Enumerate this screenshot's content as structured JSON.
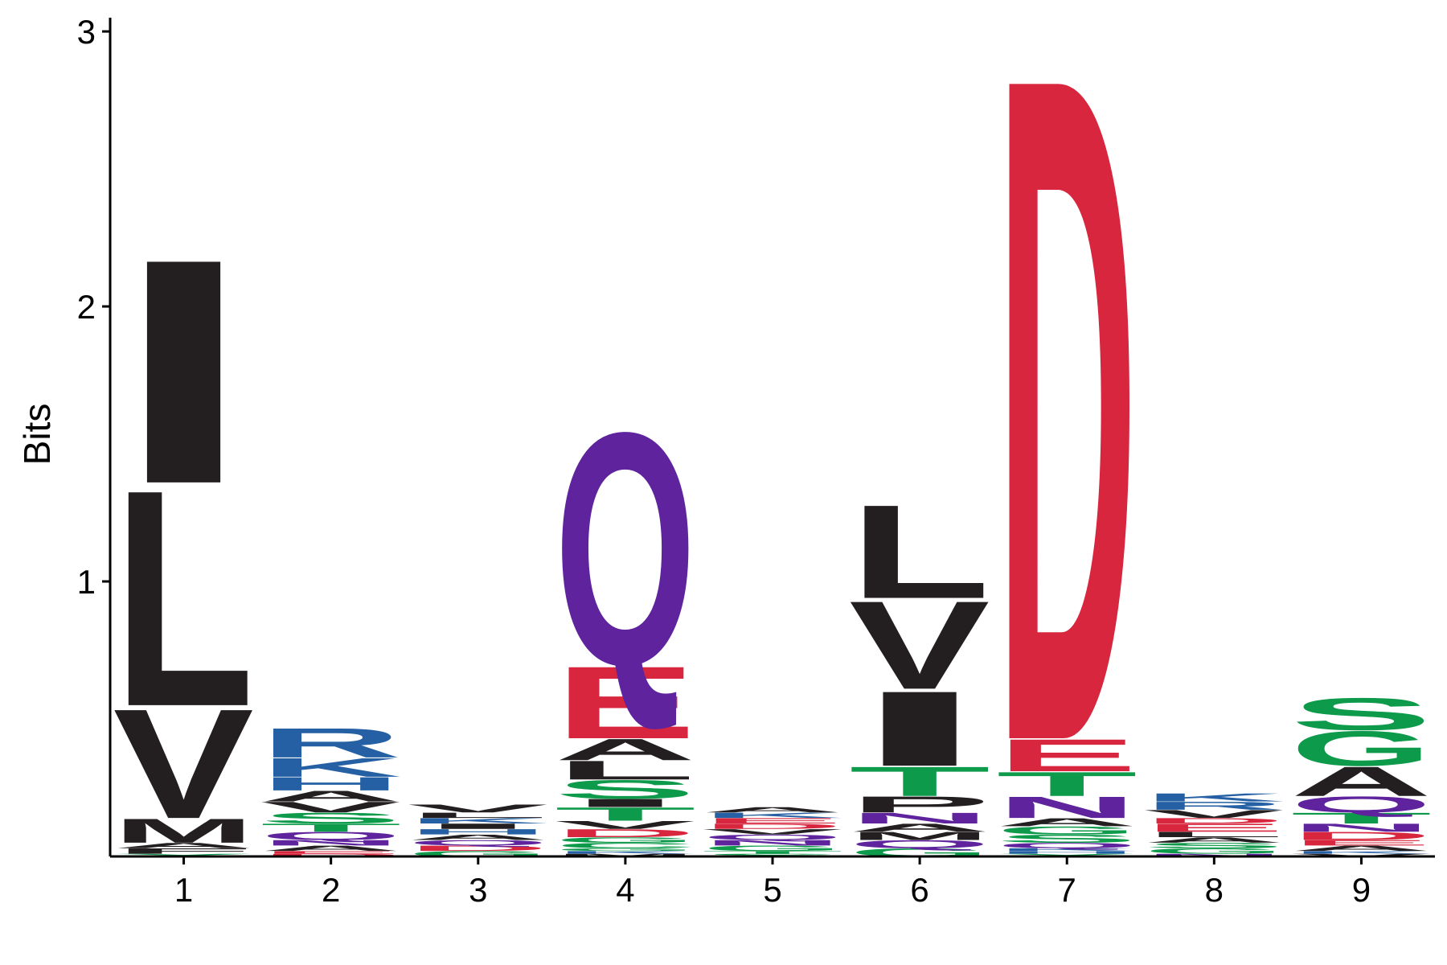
{
  "chart_data": {
    "type": "sequence-logo",
    "ylabel": "Bits",
    "xlabel": "",
    "ylim": [
      0,
      3.05
    ],
    "y_ticks": [
      1,
      2,
      3
    ],
    "positions": [
      "1",
      "2",
      "3",
      "4",
      "5",
      "6",
      "7",
      "8",
      "9"
    ],
    "colors": {
      "hydrophobic": "#231F20",
      "acidic": "#D7263D",
      "basic": "#2660A4",
      "neutral": "#5E239D",
      "polar": "#0D9A4A"
    },
    "stacks": [
      [
        {
          "letter": "Y",
          "bits": 0.01,
          "color": "#0D9A4A"
        },
        {
          "letter": "F",
          "bits": 0.02,
          "color": "#231F20"
        },
        {
          "letter": "A",
          "bits": 0.02,
          "color": "#231F20"
        },
        {
          "letter": "M",
          "bits": 0.09,
          "color": "#231F20"
        },
        {
          "letter": "V",
          "bits": 0.41,
          "color": "#231F20"
        },
        {
          "letter": "L",
          "bits": 0.81,
          "color": "#231F20"
        },
        {
          "letter": "I",
          "bits": 0.84,
          "color": "#231F20"
        }
      ],
      [
        {
          "letter": "D",
          "bits": 0.01,
          "color": "#D7263D"
        },
        {
          "letter": "E",
          "bits": 0.01,
          "color": "#D7263D"
        },
        {
          "letter": "A",
          "bits": 0.02,
          "color": "#231F20"
        },
        {
          "letter": "N",
          "bits": 0.02,
          "color": "#5E239D"
        },
        {
          "letter": "Q",
          "bits": 0.03,
          "color": "#5E239D"
        },
        {
          "letter": "T",
          "bits": 0.03,
          "color": "#0D9A4A"
        },
        {
          "letter": "S",
          "bits": 0.04,
          "color": "#0D9A4A"
        },
        {
          "letter": "V",
          "bits": 0.04,
          "color": "#231F20"
        },
        {
          "letter": "A",
          "bits": 0.04,
          "color": "#231F20"
        },
        {
          "letter": "H",
          "bits": 0.05,
          "color": "#2660A4"
        },
        {
          "letter": "K",
          "bits": 0.07,
          "color": "#2660A4"
        },
        {
          "letter": "R",
          "bits": 0.11,
          "color": "#2660A4"
        }
      ],
      [
        {
          "letter": "G",
          "bits": 0.02,
          "color": "#0D9A4A"
        },
        {
          "letter": "D",
          "bits": 0.02,
          "color": "#D7263D"
        },
        {
          "letter": "Q",
          "bits": 0.02,
          "color": "#5E239D"
        },
        {
          "letter": "A",
          "bits": 0.02,
          "color": "#231F20"
        },
        {
          "letter": "H",
          "bits": 0.02,
          "color": "#2660A4"
        },
        {
          "letter": "I",
          "bits": 0.02,
          "color": "#231F20"
        },
        {
          "letter": "K",
          "bits": 0.02,
          "color": "#2660A4"
        },
        {
          "letter": "L",
          "bits": 0.02,
          "color": "#231F20"
        },
        {
          "letter": "V",
          "bits": 0.03,
          "color": "#231F20"
        }
      ],
      [
        {
          "letter": "M",
          "bits": 0.01,
          "color": "#231F20"
        },
        {
          "letter": "K",
          "bits": 0.01,
          "color": "#2660A4"
        },
        {
          "letter": "G",
          "bits": 0.01,
          "color": "#0D9A4A"
        },
        {
          "letter": "C",
          "bits": 0.02,
          "color": "#0D9A4A"
        },
        {
          "letter": "G",
          "bits": 0.02,
          "color": "#0D9A4A"
        },
        {
          "letter": "D",
          "bits": 0.03,
          "color": "#D7263D"
        },
        {
          "letter": "V",
          "bits": 0.03,
          "color": "#231F20"
        },
        {
          "letter": "T",
          "bits": 0.05,
          "color": "#0D9A4A"
        },
        {
          "letter": "I",
          "bits": 0.03,
          "color": "#231F20"
        },
        {
          "letter": "S",
          "bits": 0.07,
          "color": "#0D9A4A"
        },
        {
          "letter": "L",
          "bits": 0.07,
          "color": "#231F20"
        },
        {
          "letter": "A",
          "bits": 0.08,
          "color": "#231F20"
        },
        {
          "letter": "E",
          "bits": 0.27,
          "color": "#D7263D"
        },
        {
          "letter": "Q",
          "bits": 0.87,
          "color": "#5E239D"
        }
      ],
      [
        {
          "letter": "S",
          "bits": 0.01,
          "color": "#0D9A4A"
        },
        {
          "letter": "T",
          "bits": 0.01,
          "color": "#0D9A4A"
        },
        {
          "letter": "G",
          "bits": 0.02,
          "color": "#0D9A4A"
        },
        {
          "letter": "N",
          "bits": 0.02,
          "color": "#5E239D"
        },
        {
          "letter": "Q",
          "bits": 0.02,
          "color": "#5E239D"
        },
        {
          "letter": "V",
          "bits": 0.02,
          "color": "#231F20"
        },
        {
          "letter": "D",
          "bits": 0.02,
          "color": "#D7263D"
        },
        {
          "letter": "E",
          "bits": 0.02,
          "color": "#D7263D"
        },
        {
          "letter": "K",
          "bits": 0.02,
          "color": "#2660A4"
        },
        {
          "letter": "A",
          "bits": 0.02,
          "color": "#231F20"
        }
      ],
      [
        {
          "letter": "G",
          "bits": 0.03,
          "color": "#0D9A4A"
        },
        {
          "letter": "Q",
          "bits": 0.03,
          "color": "#5E239D"
        },
        {
          "letter": "M",
          "bits": 0.03,
          "color": "#231F20"
        },
        {
          "letter": "A",
          "bits": 0.03,
          "color": "#231F20"
        },
        {
          "letter": "N",
          "bits": 0.04,
          "color": "#5E239D"
        },
        {
          "letter": "P",
          "bits": 0.06,
          "color": "#231F20"
        },
        {
          "letter": "T",
          "bits": 0.11,
          "color": "#0D9A4A"
        },
        {
          "letter": "I",
          "bits": 0.28,
          "color": "#231F20"
        },
        {
          "letter": "V",
          "bits": 0.33,
          "color": "#231F20"
        },
        {
          "letter": "L",
          "bits": 0.35,
          "color": "#231F20"
        }
      ],
      [
        {
          "letter": "Y",
          "bits": 0.01,
          "color": "#0D9A4A"
        },
        {
          "letter": "H",
          "bits": 0.01,
          "color": "#2660A4"
        },
        {
          "letter": "K",
          "bits": 0.01,
          "color": "#2660A4"
        },
        {
          "letter": "Q",
          "bits": 0.02,
          "color": "#5E239D"
        },
        {
          "letter": "S",
          "bits": 0.03,
          "color": "#0D9A4A"
        },
        {
          "letter": "G",
          "bits": 0.03,
          "color": "#0D9A4A"
        },
        {
          "letter": "A",
          "bits": 0.03,
          "color": "#231F20"
        },
        {
          "letter": "N",
          "bits": 0.08,
          "color": "#5E239D"
        },
        {
          "letter": "T",
          "bits": 0.09,
          "color": "#0D9A4A"
        },
        {
          "letter": "E",
          "bits": 0.12,
          "color": "#D7263D"
        },
        {
          "letter": "D",
          "bits": 2.49,
          "color": "#D7263D"
        }
      ],
      [
        {
          "letter": "N",
          "bits": 0.01,
          "color": "#5E239D"
        },
        {
          "letter": "G",
          "bits": 0.02,
          "color": "#0D9A4A"
        },
        {
          "letter": "S",
          "bits": 0.02,
          "color": "#0D9A4A"
        },
        {
          "letter": "A",
          "bits": 0.02,
          "color": "#231F20"
        },
        {
          "letter": "L",
          "bits": 0.02,
          "color": "#231F20"
        },
        {
          "letter": "E",
          "bits": 0.03,
          "color": "#D7263D"
        },
        {
          "letter": "D",
          "bits": 0.02,
          "color": "#D7263D"
        },
        {
          "letter": "V",
          "bits": 0.03,
          "color": "#231F20"
        },
        {
          "letter": "R",
          "bits": 0.03,
          "color": "#2660A4"
        },
        {
          "letter": "K",
          "bits": 0.03,
          "color": "#2660A4"
        }
      ],
      [
        {
          "letter": "V",
          "bits": 0.01,
          "color": "#231F20"
        },
        {
          "letter": "K",
          "bits": 0.01,
          "color": "#2660A4"
        },
        {
          "letter": "A",
          "bits": 0.02,
          "color": "#231F20"
        },
        {
          "letter": "E",
          "bits": 0.02,
          "color": "#D7263D"
        },
        {
          "letter": "D",
          "bits": 0.03,
          "color": "#D7263D"
        },
        {
          "letter": "N",
          "bits": 0.03,
          "color": "#5E239D"
        },
        {
          "letter": "T",
          "bits": 0.04,
          "color": "#0D9A4A"
        },
        {
          "letter": "Q",
          "bits": 0.06,
          "color": "#5E239D"
        },
        {
          "letter": "A",
          "bits": 0.11,
          "color": "#231F20"
        },
        {
          "letter": "G",
          "bits": 0.13,
          "color": "#0D9A4A"
        },
        {
          "letter": "S",
          "bits": 0.12,
          "color": "#0D9A4A"
        }
      ]
    ]
  }
}
